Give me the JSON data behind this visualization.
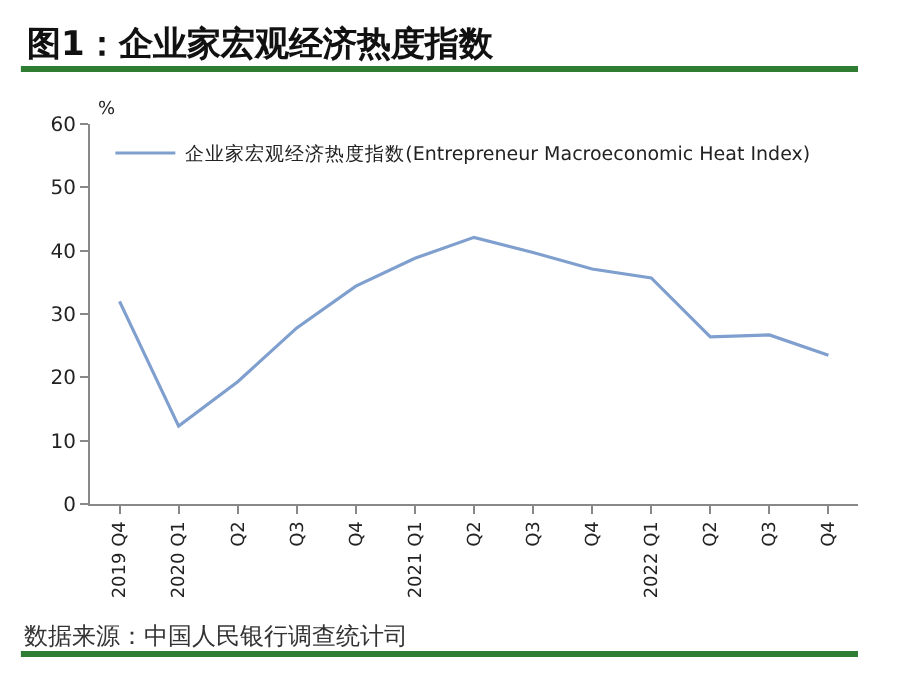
{
  "chart_data": {
    "type": "line",
    "title": "图1：企业家宏观经济热度指数",
    "ylabel": "%",
    "categories": [
      "2019 Q4",
      "2020 Q1",
      "Q2",
      "Q3",
      "Q4",
      "2021 Q1",
      "Q2",
      "Q3",
      "Q4",
      "2022 Q1",
      "Q2",
      "Q3",
      "Q4"
    ],
    "series": [
      {
        "name": "企业家宏观经济热度指数(Entrepreneur Macroeconomic Heat Index)",
        "color": "#7f9fcf",
        "values": [
          32,
          12.3,
          19.3,
          27.8,
          34.4,
          38.8,
          42.1,
          39.7,
          37.1,
          35.7,
          26.4,
          26.7,
          23.5
        ]
      }
    ],
    "ylim": [
      0,
      60
    ],
    "yticks": [
      0,
      10,
      20,
      30,
      40,
      50,
      60
    ],
    "legend": "top left",
    "marker": "none",
    "line_style": "solid",
    "annotations": [
      "数据来源：中国人民银行调查统计司"
    ]
  }
}
